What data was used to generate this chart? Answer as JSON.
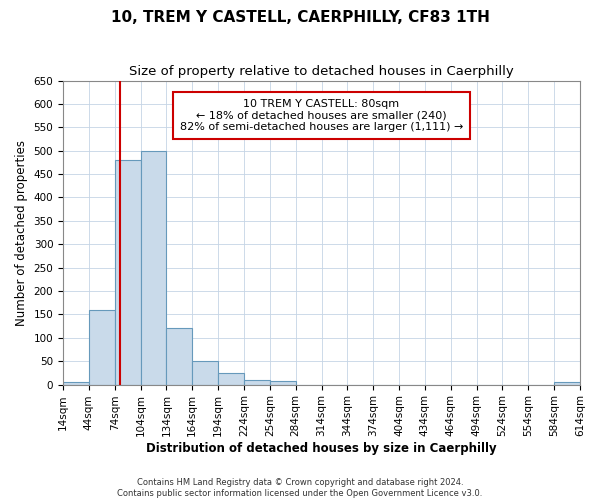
{
  "title": "10, TREM Y CASTELL, CAERPHILLY, CF83 1TH",
  "subtitle": "Size of property relative to detached houses in Caerphilly",
  "xlabel": "Distribution of detached houses by size in Caerphilly",
  "ylabel": "Number of detached properties",
  "bar_values": [
    5,
    160,
    480,
    500,
    120,
    50,
    25,
    10,
    8,
    0,
    0,
    0,
    0,
    0,
    0,
    0,
    0,
    0,
    0,
    5
  ],
  "bin_edges": [
    14,
    44,
    74,
    104,
    134,
    164,
    194,
    224,
    254,
    284,
    314,
    344,
    374,
    404,
    434,
    464,
    494,
    524,
    554,
    584,
    614
  ],
  "bar_color": "#c9daea",
  "bar_edge_color": "#6699bb",
  "property_size": 80,
  "property_line_color": "#cc0000",
  "annotation_text": "10 TREM Y CASTELL: 80sqm\n← 18% of detached houses are smaller (240)\n82% of semi-detached houses are larger (1,111) →",
  "annotation_box_color": "#cc0000",
  "ylim": [
    0,
    650
  ],
  "yticks": [
    0,
    50,
    100,
    150,
    200,
    250,
    300,
    350,
    400,
    450,
    500,
    550,
    600,
    650
  ],
  "grid_color": "#c5d5e5",
  "footer_line1": "Contains HM Land Registry data © Crown copyright and database right 2024.",
  "footer_line2": "Contains public sector information licensed under the Open Government Licence v3.0.",
  "title_fontsize": 11,
  "subtitle_fontsize": 9.5,
  "tick_fontsize": 7.5,
  "ylabel_fontsize": 8.5,
  "xlabel_fontsize": 8.5,
  "annotation_fontsize": 8
}
